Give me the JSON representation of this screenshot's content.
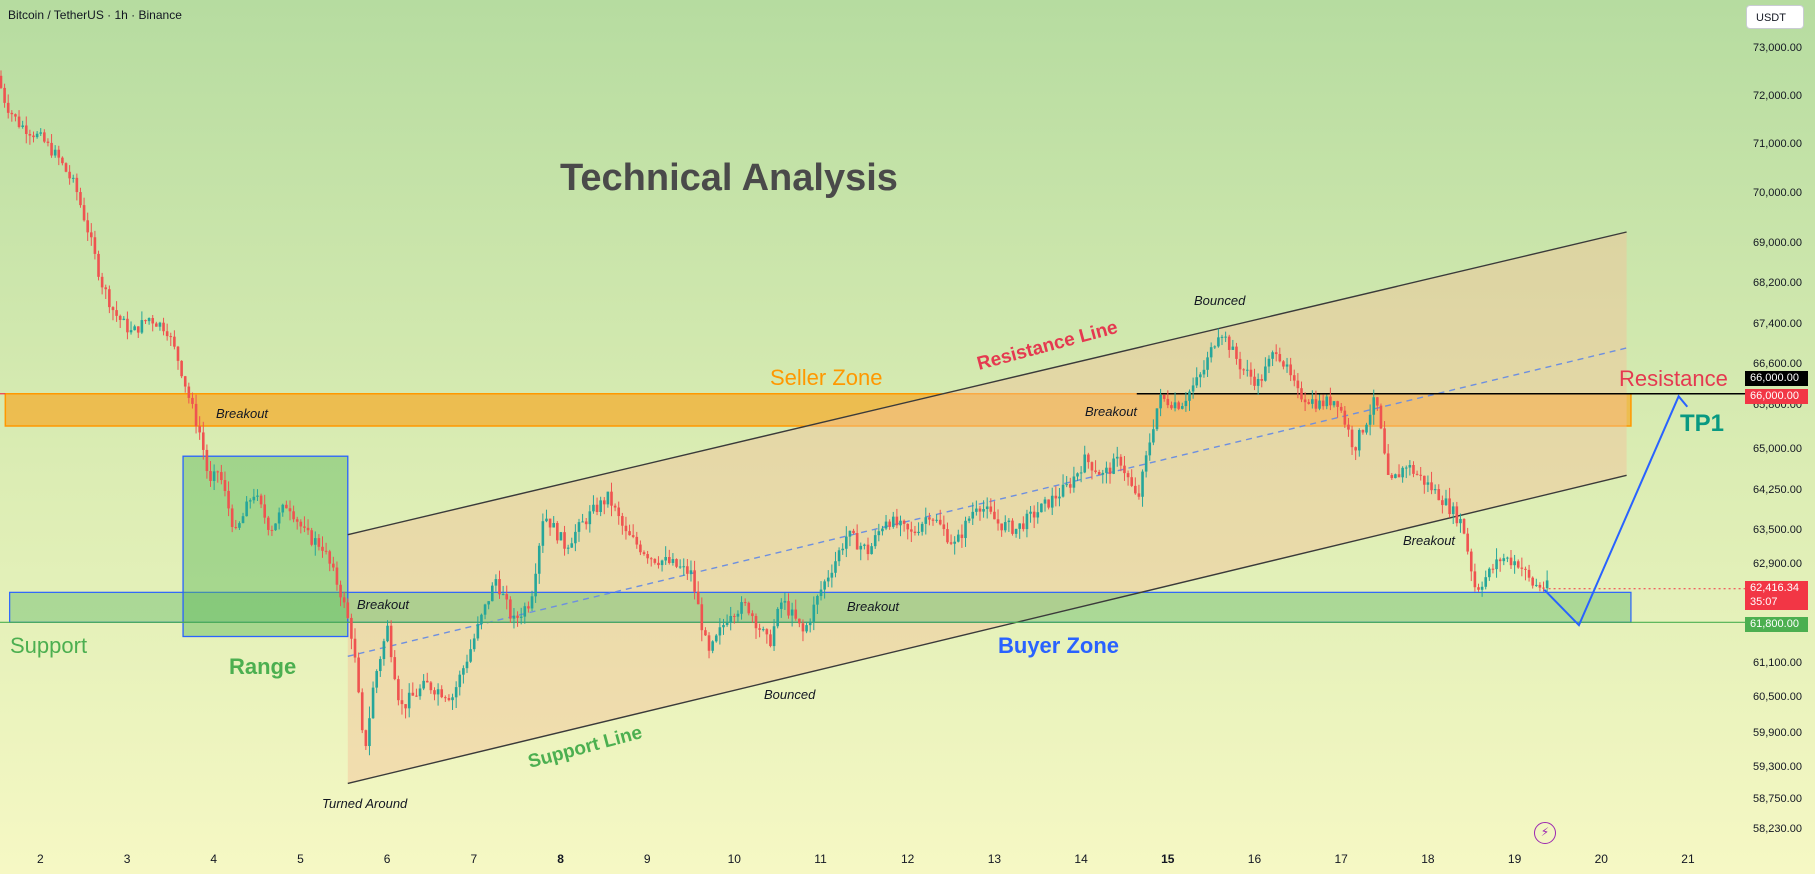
{
  "header": {
    "symbol_title": "Bitcoin / TetherUS · 1h · Binance",
    "currency_button": "USDT"
  },
  "colors": {
    "bull": "#26a69a",
    "bear": "#ef5350",
    "seller_zone": "#ff9800",
    "buyer_zone_fill": "#7cc47a",
    "buyer_zone_border": "#2962ff",
    "range_box": "#2962ff",
    "channel_fill": "#f5c19a",
    "resistance_label": "#e53950",
    "support_label": "#4caf50",
    "buyer_label": "#2962ff",
    "seller_label": "#ff9800",
    "tp_label": "#089981",
    "projection_line": "#2962ff"
  },
  "price_badges": {
    "resistance_black": "66,000.00",
    "resistance_red": "66,000.00",
    "current_price": "62,416.34",
    "countdown": "35:07",
    "support": "61,800.00"
  },
  "chart_data": {
    "type": "candlestick",
    "title": "Technical Analysis",
    "xlabel": "",
    "ylabel": "",
    "x_ticks": [
      "2",
      "3",
      "4",
      "5",
      "6",
      "7",
      "8",
      "9",
      "10",
      "11",
      "12",
      "13",
      "14",
      "15",
      "16",
      "17",
      "18",
      "19",
      "20",
      "21"
    ],
    "y_ticks": [
      "73,000.00",
      "72,000.00",
      "71,000.00",
      "70,000.00",
      "69,000.00",
      "68,200.00",
      "67,400.00",
      "66,600.00",
      "65,800.00",
      "65,000.00",
      "64,250.00",
      "63,500.00",
      "62,900.00",
      "61,100.00",
      "60,500.00",
      "59,900.00",
      "59,300.00",
      "58,750.00",
      "58,230.00"
    ],
    "xlim": [
      1.6,
      21.5
    ],
    "price_path": [
      [
        1.55,
        72.4
      ],
      [
        1.65,
        71.8
      ],
      [
        1.8,
        71.4
      ],
      [
        2.05,
        71.1
      ],
      [
        2.25,
        70.7
      ],
      [
        2.45,
        70.1
      ],
      [
        2.6,
        69.2
      ],
      [
        2.75,
        68.2
      ],
      [
        2.9,
        67.6
      ],
      [
        3.1,
        67.2
      ],
      [
        3.3,
        67.5
      ],
      [
        3.5,
        67.3
      ],
      [
        3.65,
        66.6
      ],
      [
        3.78,
        65.8
      ],
      [
        3.9,
        65.2
      ],
      [
        4.0,
        64.3
      ],
      [
        4.1,
        64.6
      ],
      [
        4.3,
        63.4
      ],
      [
        4.5,
        64.2
      ],
      [
        4.7,
        63.5
      ],
      [
        4.9,
        64.0
      ],
      [
        5.1,
        63.4
      ],
      [
        5.3,
        63.2
      ],
      [
        5.5,
        62.4
      ],
      [
        5.65,
        61.5
      ],
      [
        5.78,
        59.5
      ],
      [
        5.9,
        60.8
      ],
      [
        6.05,
        61.7
      ],
      [
        6.2,
        60.3
      ],
      [
        6.5,
        60.7
      ],
      [
        6.8,
        60.5
      ],
      [
        7.0,
        61.3
      ],
      [
        7.3,
        62.6
      ],
      [
        7.5,
        61.8
      ],
      [
        7.7,
        62.2
      ],
      [
        7.85,
        63.8
      ],
      [
        8.1,
        63.2
      ],
      [
        8.4,
        63.8
      ],
      [
        8.6,
        64.1
      ],
      [
        8.8,
        63.4
      ],
      [
        9.1,
        63.0
      ],
      [
        9.3,
        62.9
      ],
      [
        9.55,
        62.7
      ],
      [
        9.75,
        61.2
      ],
      [
        10.0,
        62.0
      ],
      [
        10.2,
        62.1
      ],
      [
        10.45,
        61.4
      ],
      [
        10.6,
        62.2
      ],
      [
        10.85,
        61.6
      ],
      [
        11.05,
        62.4
      ],
      [
        11.35,
        63.4
      ],
      [
        11.6,
        63.1
      ],
      [
        11.8,
        63.7
      ],
      [
        12.1,
        63.4
      ],
      [
        12.3,
        63.8
      ],
      [
        12.6,
        63.2
      ],
      [
        12.85,
        64.0
      ],
      [
        13.1,
        63.6
      ],
      [
        13.3,
        63.5
      ],
      [
        13.6,
        63.9
      ],
      [
        13.9,
        64.3
      ],
      [
        14.1,
        64.8
      ],
      [
        14.3,
        64.5
      ],
      [
        14.5,
        64.8
      ],
      [
        14.7,
        64.0
      ],
      [
        14.85,
        65.2
      ],
      [
        14.95,
        65.9
      ],
      [
        15.2,
        65.8
      ],
      [
        15.45,
        66.4
      ],
      [
        15.65,
        67.3
      ],
      [
        15.9,
        66.5
      ],
      [
        16.1,
        66.2
      ],
      [
        16.3,
        66.9
      ],
      [
        16.55,
        66.0
      ],
      [
        16.8,
        65.8
      ],
      [
        17.0,
        65.9
      ],
      [
        17.2,
        65.0
      ],
      [
        17.45,
        65.9
      ],
      [
        17.6,
        64.3
      ],
      [
        17.8,
        64.7
      ],
      [
        18.0,
        64.4
      ],
      [
        18.2,
        64.1
      ],
      [
        18.45,
        63.6
      ],
      [
        18.6,
        62.4
      ],
      [
        18.75,
        62.7
      ],
      [
        18.9,
        63.0
      ],
      [
        19.1,
        62.9
      ],
      [
        19.25,
        62.5
      ],
      [
        19.4,
        62.45
      ]
    ],
    "price_levels": {
      "resistance": 66000,
      "support": 61800,
      "current": 62416.34
    },
    "zones": [
      {
        "name": "Seller Zone",
        "x": [
          1.6,
          20.35
        ],
        "low": 65400,
        "high": 66000
      },
      {
        "name": "Buyer Zone",
        "x": [
          1.65,
          20.35
        ],
        "low": 61800,
        "high": 62350
      },
      {
        "name": "Range",
        "x": [
          3.65,
          5.55
        ],
        "low": 61550,
        "high": 64850
      }
    ],
    "channel": {
      "upper": [
        [
          5.55,
          63.4
        ],
        [
          20.3,
          69.2
        ]
      ],
      "lower": [
        [
          5.55,
          59.0
        ],
        [
          20.3,
          64.5
        ]
      ],
      "mid": [
        [
          5.55,
          61.2
        ],
        [
          20.3,
          66.9
        ]
      ]
    },
    "projection": [
      [
        19.35,
        62.4
      ],
      [
        19.75,
        61.75
      ],
      [
        20.9,
        65.95
      ],
      [
        21.0,
        65.75
      ]
    ],
    "annotations": {
      "seller_zone": "Seller Zone",
      "buyer_zone": "Buyer Zone",
      "range": "Range",
      "support": "Support",
      "resistance": "Resistance",
      "tp1": "TP1",
      "resistance_line": "Resistance Line",
      "support_line": "Support Line",
      "breakout": "Breakout",
      "bounced": "Bounced",
      "turned_around": "Turned Around"
    }
  }
}
